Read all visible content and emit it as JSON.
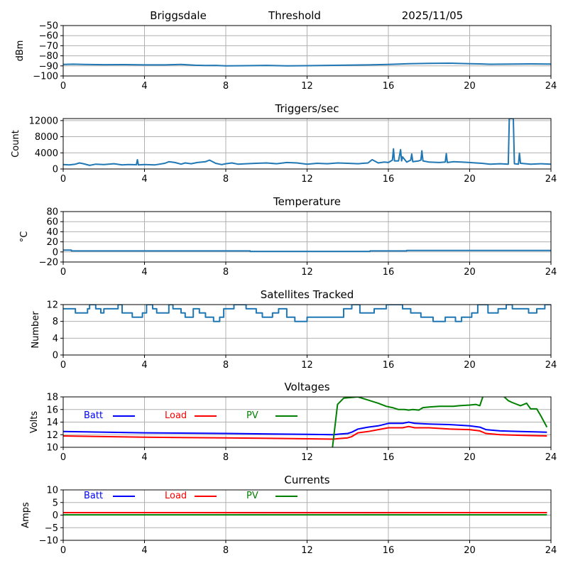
{
  "header": {
    "station": "Briggsdale",
    "mode": "Threshold",
    "date": "2025/11/05"
  },
  "chart_data": [
    {
      "id": "signal",
      "type": "line",
      "title": "",
      "xlabel": "",
      "ylabel": "dBm",
      "xlim": [
        0,
        24
      ],
      "ylim": [
        -100,
        -50
      ],
      "xticks": [
        0,
        4,
        8,
        12,
        16,
        20,
        24
      ],
      "yticks": [
        -100,
        -90,
        -80,
        -70,
        -60,
        -50
      ],
      "ytick_labels": [
        "−100",
        "−90",
        "−80",
        "−70",
        "−60",
        "−50"
      ],
      "grid": true,
      "series": [
        {
          "name": "signal",
          "color": "#1f77b4",
          "x": [
            0,
            0.5,
            1,
            2,
            3,
            4,
            5,
            5.8,
            6.5,
            7,
            7.5,
            8,
            9,
            10,
            11,
            12,
            13,
            14,
            15,
            16,
            16.5,
            17,
            18,
            19,
            19.5,
            20,
            20.5,
            21,
            22,
            23,
            24
          ],
          "y": [
            -88.5,
            -88.3,
            -88.6,
            -88.8,
            -88.7,
            -89.0,
            -89.0,
            -88.6,
            -89.4,
            -89.6,
            -89.5,
            -90.0,
            -89.8,
            -89.5,
            -90.0,
            -89.8,
            -89.5,
            -89.2,
            -89.0,
            -88.6,
            -88.2,
            -87.8,
            -87.5,
            -87.3,
            -87.6,
            -87.9,
            -88.0,
            -88.4,
            -88.2,
            -88.0,
            -88.2
          ]
        }
      ]
    },
    {
      "id": "triggers",
      "type": "line",
      "title": "Triggers/sec",
      "xlabel": "",
      "ylabel": "Count",
      "xlim": [
        0,
        24
      ],
      "ylim": [
        0,
        12500
      ],
      "xticks": [
        0,
        4,
        8,
        12,
        16,
        20,
        24
      ],
      "yticks": [
        0,
        4000,
        8000,
        12000
      ],
      "ytick_labels": [
        "0",
        "4000",
        "8000",
        "12000"
      ],
      "grid": true,
      "series": [
        {
          "name": "triggers",
          "color": "#1f77b4",
          "x": [
            0,
            0.3,
            0.6,
            0.8,
            1.0,
            1.3,
            1.6,
            2.0,
            2.5,
            2.9,
            3.2,
            3.6,
            3.65,
            3.7,
            4.0,
            4.5,
            5.0,
            5.2,
            5.5,
            5.8,
            6.0,
            6.3,
            6.6,
            7.0,
            7.2,
            7.5,
            7.8,
            8.0,
            8.3,
            8.6,
            9.0,
            9.5,
            10.0,
            10.5,
            11.0,
            11.5,
            12.0,
            12.5,
            13.0,
            13.5,
            14.0,
            14.5,
            15.0,
            15.2,
            15.5,
            15.8,
            16.0,
            16.2,
            16.25,
            16.3,
            16.5,
            16.6,
            16.65,
            16.7,
            16.9,
            17.1,
            17.15,
            17.2,
            17.5,
            17.6,
            17.65,
            17.7,
            18.0,
            18.5,
            18.8,
            18.85,
            18.9,
            19.2,
            19.6,
            20.0,
            20.3,
            20.6,
            21.0,
            21.5,
            21.9,
            21.95,
            22.0,
            22.1,
            22.15,
            22.2,
            22.4,
            22.45,
            22.5,
            23.0,
            23.5,
            24.0
          ],
          "y": [
            1100,
            1000,
            1200,
            1500,
            1300,
            900,
            1200,
            1100,
            1300,
            1000,
            1100,
            1050,
            2300,
            1000,
            1100,
            1000,
            1400,
            1800,
            1600,
            1200,
            1500,
            1300,
            1600,
            1800,
            2200,
            1400,
            1100,
            1300,
            1500,
            1200,
            1300,
            1400,
            1500,
            1300,
            1600,
            1500,
            1200,
            1400,
            1300,
            1500,
            1400,
            1300,
            1500,
            2300,
            1500,
            1700,
            1600,
            2200,
            5000,
            2000,
            2000,
            4800,
            2000,
            3000,
            1700,
            2200,
            3700,
            1800,
            2000,
            2200,
            4500,
            2000,
            1700,
            1600,
            1700,
            3800,
            1600,
            1800,
            1700,
            1600,
            1500,
            1400,
            1200,
            1300,
            1200,
            12500,
            12500,
            12500,
            12500,
            1300,
            1200,
            3900,
            1400,
            1200,
            1300,
            1200
          ]
        }
      ]
    },
    {
      "id": "temperature",
      "type": "line",
      "title": "Temperature",
      "xlabel": "",
      "ylabel": "°C",
      "xlim": [
        0,
        24
      ],
      "ylim": [
        -20,
        80
      ],
      "xticks": [
        0,
        4,
        8,
        12,
        16,
        20,
        24
      ],
      "yticks": [
        -20,
        0,
        20,
        40,
        60,
        80
      ],
      "ytick_labels": [
        "−20",
        "0",
        "20",
        "40",
        "60",
        "80"
      ],
      "grid": true,
      "series": [
        {
          "name": "temperature",
          "color": "#1f77b4",
          "x": [
            0,
            0.4,
            0.4,
            9.2,
            9.2,
            15.1,
            15.1,
            16.9,
            16.9,
            24
          ],
          "y": [
            3.5,
            3.5,
            2,
            2,
            1,
            1,
            2,
            2,
            3,
            3
          ]
        }
      ]
    },
    {
      "id": "satellites",
      "type": "line",
      "title": "Satellites Tracked",
      "xlabel": "",
      "ylabel": "Number",
      "xlim": [
        0,
        24
      ],
      "ylim": [
        0,
        12
      ],
      "xticks": [
        0,
        4,
        8,
        12,
        16,
        20,
        24
      ],
      "yticks": [
        0,
        4,
        8,
        12
      ],
      "ytick_labels": [
        "0",
        "4",
        "8",
        "12"
      ],
      "grid": true,
      "series": [
        {
          "name": "satellites",
          "color": "#1f77b4",
          "x": [
            0,
            0.6,
            0.6,
            1.2,
            1.2,
            1.3,
            1.3,
            1.6,
            1.6,
            1.85,
            1.85,
            2.0,
            2.0,
            2.7,
            2.7,
            2.9,
            2.9,
            3.4,
            3.4,
            3.9,
            3.9,
            4.1,
            4.1,
            4.4,
            4.4,
            4.6,
            4.6,
            5.2,
            5.2,
            5.4,
            5.4,
            5.8,
            5.8,
            6.0,
            6.0,
            6.4,
            6.4,
            6.7,
            6.7,
            7.0,
            7.0,
            7.4,
            7.4,
            7.7,
            7.7,
            7.9,
            7.9,
            8.4,
            8.4,
            9.0,
            9.0,
            9.5,
            9.5,
            9.8,
            9.8,
            10.3,
            10.3,
            10.6,
            10.6,
            11.0,
            11.0,
            11.4,
            11.4,
            12.0,
            12.0,
            12.8,
            12.8,
            13.8,
            13.8,
            14.2,
            14.2,
            14.6,
            14.6,
            15.3,
            15.3,
            15.9,
            15.9,
            16.7,
            16.7,
            17.1,
            17.1,
            17.6,
            17.6,
            18.2,
            18.2,
            18.8,
            18.8,
            19.3,
            19.3,
            19.6,
            19.6,
            20.1,
            20.1,
            20.4,
            20.4,
            20.9,
            20.9,
            21.4,
            21.4,
            21.8,
            21.8,
            22.1,
            22.1,
            22.9,
            22.9,
            23.3,
            23.3,
            23.7,
            23.7,
            24.0
          ],
          "y": [
            11,
            11,
            10,
            10,
            11,
            11,
            12,
            12,
            11,
            11,
            10,
            10,
            11,
            11,
            12,
            12,
            10,
            10,
            9,
            9,
            10,
            10,
            12,
            12,
            11,
            11,
            10,
            10,
            12,
            12,
            11,
            11,
            10,
            10,
            9,
            9,
            11,
            11,
            10,
            10,
            9,
            9,
            8,
            8,
            9,
            9,
            11,
            11,
            12,
            12,
            11,
            11,
            10,
            10,
            9,
            9,
            10,
            10,
            11,
            11,
            9,
            9,
            8,
            8,
            9,
            9,
            9,
            9,
            11,
            11,
            12,
            12,
            10,
            10,
            11,
            11,
            12,
            12,
            11,
            11,
            10,
            10,
            9,
            9,
            8,
            8,
            9,
            9,
            8,
            8,
            9,
            9,
            10,
            10,
            12,
            12,
            10,
            10,
            11,
            11,
            12,
            12,
            11,
            11,
            10,
            10,
            11,
            11,
            12,
            12
          ]
        }
      ]
    },
    {
      "id": "voltages",
      "type": "line",
      "title": "Voltages",
      "xlabel": "",
      "ylabel": "Volts",
      "xlim": [
        0,
        24
      ],
      "ylim": [
        10,
        18
      ],
      "xticks": [
        0,
        4,
        8,
        12,
        16,
        20,
        24
      ],
      "yticks": [
        10,
        12,
        14,
        16,
        18
      ],
      "ytick_labels": [
        "10",
        "12",
        "14",
        "16",
        "18"
      ],
      "grid": true,
      "legend": {
        "placement": "top-left",
        "entries": [
          {
            "label": "Batt",
            "color": "#0000ff"
          },
          {
            "label": "Load",
            "color": "#ff0000"
          },
          {
            "label": "PV",
            "color": "#008000"
          }
        ]
      },
      "series": [
        {
          "name": "Batt",
          "color": "#0000ff",
          "x": [
            0,
            4,
            8,
            12,
            13.3,
            13.6,
            14.0,
            14.2,
            14.5,
            15.0,
            15.5,
            16.0,
            16.5,
            16.7,
            17.0,
            17.3,
            18.0,
            19.0,
            20.0,
            20.5,
            20.8,
            21.5,
            22.5,
            23.8
          ],
          "y": [
            12.5,
            12.3,
            12.2,
            12.05,
            12.0,
            12.1,
            12.2,
            12.4,
            12.9,
            13.2,
            13.4,
            13.8,
            13.8,
            13.8,
            14.0,
            13.8,
            13.7,
            13.6,
            13.4,
            13.2,
            12.8,
            12.6,
            12.5,
            12.4
          ]
        },
        {
          "name": "Load",
          "color": "#ff0000",
          "x": [
            0,
            4,
            8,
            12,
            13.3,
            13.6,
            14.0,
            14.2,
            14.5,
            15.0,
            15.5,
            16.0,
            16.5,
            16.7,
            17.0,
            17.3,
            18.0,
            19.0,
            20.0,
            20.5,
            20.8,
            21.5,
            22.5,
            23.8
          ],
          "y": [
            11.8,
            11.6,
            11.5,
            11.35,
            11.3,
            11.4,
            11.5,
            11.7,
            12.3,
            12.5,
            12.8,
            13.1,
            13.1,
            13.1,
            13.3,
            13.1,
            13.1,
            12.9,
            12.8,
            12.6,
            12.2,
            12.0,
            11.9,
            11.8
          ]
        },
        {
          "name": "PV",
          "color": "#008000",
          "x": [
            13.25,
            13.5,
            13.8,
            14.5,
            15.0,
            15.5,
            15.9,
            16.2,
            16.5,
            16.8,
            17.0,
            17.2,
            17.5,
            17.7,
            18.0,
            18.5,
            19.0,
            19.2,
            19.5,
            20.0,
            20.3,
            20.5,
            20.7,
            21.6,
            21.9,
            22.1,
            22.5,
            22.8,
            23.0,
            23.3,
            23.5,
            23.8
          ],
          "y": [
            10.0,
            16.8,
            17.8,
            18.0,
            17.5,
            17.0,
            16.5,
            16.3,
            16.0,
            16.0,
            15.9,
            16.0,
            15.9,
            16.3,
            16.4,
            16.5,
            16.5,
            16.5,
            16.6,
            16.7,
            16.8,
            16.6,
            18.5,
            18.3,
            17.4,
            17.1,
            16.6,
            17.0,
            16.1,
            16.1,
            15.0,
            13.2
          ]
        }
      ]
    },
    {
      "id": "currents",
      "type": "line",
      "title": "Currents",
      "xlabel": "",
      "ylabel": "Amps",
      "xlim": [
        0,
        24
      ],
      "ylim": [
        -10,
        10
      ],
      "xticks": [
        0,
        4,
        8,
        12,
        16,
        20,
        24
      ],
      "yticks": [
        -10,
        -5,
        0,
        5,
        10
      ],
      "ytick_labels": [
        "−10",
        "−5",
        "0",
        "5",
        "10"
      ],
      "grid": true,
      "legend": {
        "placement": "top-left",
        "entries": [
          {
            "label": "Batt",
            "color": "#0000ff"
          },
          {
            "label": "Load",
            "color": "#ff0000"
          },
          {
            "label": "PV",
            "color": "#008000"
          }
        ]
      },
      "series": [
        {
          "name": "Batt",
          "color": "#0000ff",
          "x": [
            0,
            23.8
          ],
          "y": [
            1.0,
            1.0
          ]
        },
        {
          "name": "Load",
          "color": "#ff0000",
          "x": [
            0,
            12,
            23.8
          ],
          "y": [
            1.0,
            0.95,
            1.0
          ]
        },
        {
          "name": "PV",
          "color": "#008000",
          "x": [
            0,
            23.8
          ],
          "y": [
            0.1,
            0.1
          ]
        }
      ]
    }
  ]
}
